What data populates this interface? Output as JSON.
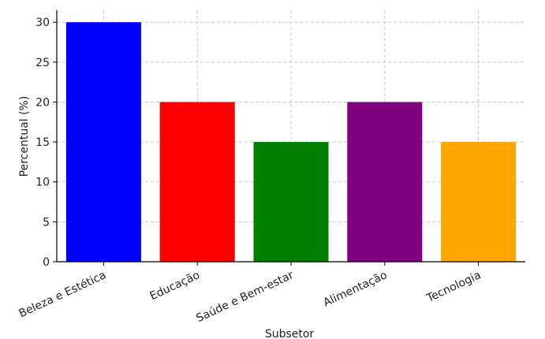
{
  "chart_data": {
    "type": "bar",
    "categories": [
      "Beleza e Estética",
      "Educação",
      "Saúde e Bem-estar",
      "Alimentação",
      "Tecnologia"
    ],
    "values": [
      30,
      20,
      15,
      20,
      15
    ],
    "colors": [
      "#0000ff",
      "#ff0000",
      "#008000",
      "#800080",
      "#ffa500"
    ],
    "title": "",
    "xlabel": "Subsetor",
    "ylabel": "Percentual (%)",
    "ylim": [
      0,
      31.5
    ],
    "yticks": [
      0,
      5,
      10,
      15,
      20,
      25,
      30
    ],
    "grid": true,
    "legend": "none"
  }
}
